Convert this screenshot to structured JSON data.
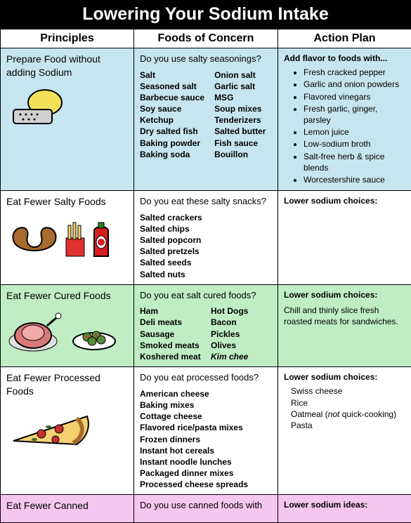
{
  "title": "Lowering Your Sodium Intake",
  "headers": {
    "principles": "Principles",
    "foods": "Foods of Concern",
    "action": "Action Plan"
  },
  "col_widths": {
    "principles": "190px",
    "foods": "205px",
    "action": "190px"
  },
  "rows": [
    {
      "bg": "#c7e5f0",
      "principle": "Prepare Food without adding Sodium",
      "icon": "grater",
      "question": "Do you use salty seasonings?",
      "items_cols": [
        [
          "Salt",
          "Seasoned salt",
          "Barbecue sauce",
          "Soy sauce",
          "Ketchup",
          "Dry salted fish",
          "Baking powder",
          "Baking soda"
        ],
        [
          "Onion salt",
          "Garlic salt",
          "MSG",
          "Soup mixes",
          "Tenderizers",
          "Salted butter",
          "Fish sauce",
          "Bouillon"
        ]
      ],
      "action_title": "Add flavor to foods with...",
      "action_list": [
        "Fresh cracked pepper",
        "Garlic and onion powders",
        "Flavored vinegars",
        "Fresh garlic, ginger, parsley",
        "Lemon juice",
        "Low-sodium broth",
        "Salt-free herb & spice blends",
        "Worcestershire sauce"
      ],
      "action_text": ""
    },
    {
      "bg": "#ffffff",
      "principle": "Eat Fewer Salty Foods",
      "icon": "pretzel-fries-ketchup",
      "question": "Do you eat these salty snacks?",
      "items_cols": [
        [
          "Salted crackers",
          "Salted chips",
          "Salted popcorn",
          "Salted pretzels",
          "Salted seeds",
          "Salted nuts"
        ]
      ],
      "action_title": "Lower sodium choices:",
      "action_list": [],
      "action_text": ""
    },
    {
      "bg": "#c0edc3",
      "principle": "Eat Fewer Cured Foods",
      "icon": "ham-olives",
      "question": "Do you eat salt cured foods?",
      "items_cols": [
        [
          "Ham",
          "Deli meats",
          "Sausage",
          "Smoked meats",
          "Koshered meat"
        ],
        [
          "Hot Dogs",
          "Bacon",
          "Pickles",
          "Olives"
        ]
      ],
      "items_cols_italic_last": [
        "",
        "Kim chee"
      ],
      "action_title": "Lower sodium choices:",
      "action_list": [],
      "action_text": "Chill and thinly slice fresh roasted meats for sandwiches."
    },
    {
      "bg": "#ffffff",
      "principle": "Eat Fewer Processed Foods",
      "icon": "pizza",
      "question": "Do you eat processed foods?",
      "items_cols": [
        [
          "American cheese",
          "Baking mixes",
          "Cottage cheese",
          "Flavored rice/pasta mixes",
          "Frozen dinners",
          "Instant hot cereals",
          "Instant noodle lunches",
          "Packaged dinner mixes",
          "Processed cheese spreads"
        ]
      ],
      "action_title": "Lower sodium choices:",
      "action_list": [],
      "action_indent": [
        "Swiss cheese",
        "Rice"
      ],
      "action_indent_special": {
        "pre": "Oatmeal (",
        "italic": "not",
        "post": " quick-cooking)"
      },
      "action_indent_after": [
        "Pasta"
      ]
    },
    {
      "bg": "#f3c7ef",
      "principle": "Eat Fewer Canned",
      "icon": "",
      "question": "Do you use canned foods with",
      "items_cols": [],
      "action_title": "Lower sodium ideas:",
      "action_list": [],
      "action_text": ""
    }
  ]
}
